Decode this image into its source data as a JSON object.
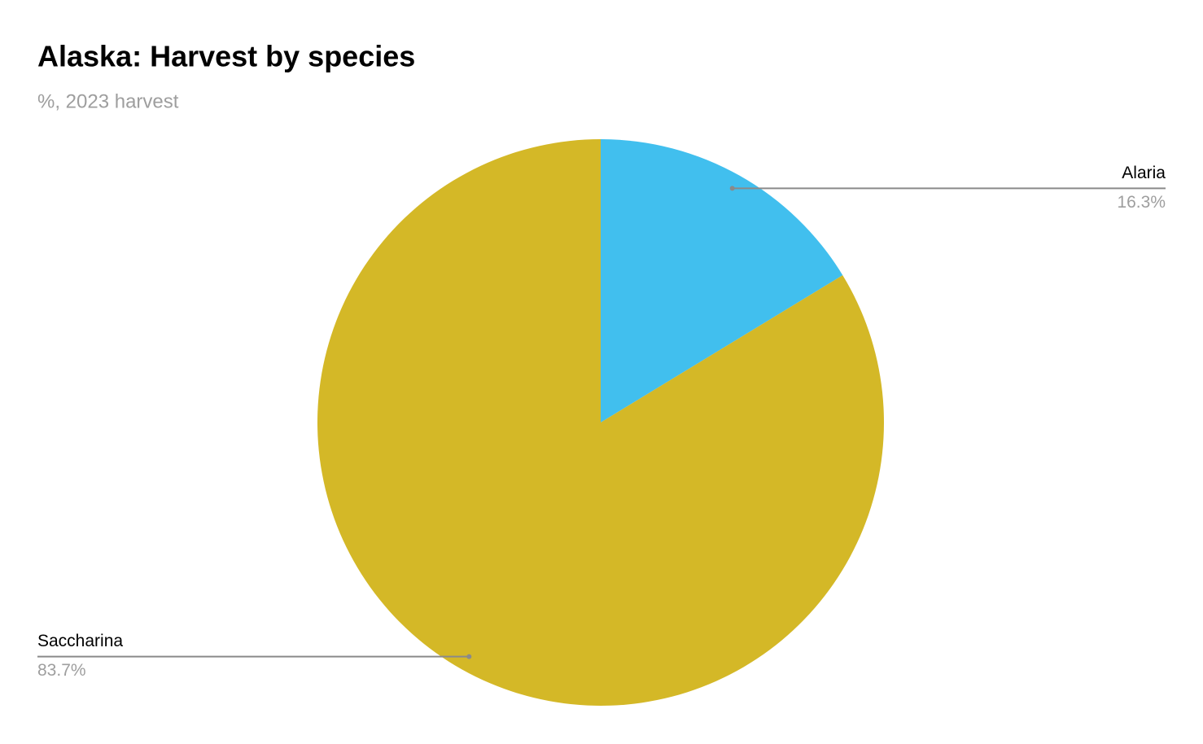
{
  "chart_data": {
    "type": "pie",
    "title": "Alaska: Harvest by species",
    "subtitle": "%, 2023 harvest",
    "categories": [
      "Alaria",
      "Saccharina"
    ],
    "values": [
      16.3,
      83.7
    ],
    "value_labels": [
      "16.3%",
      "83.7%"
    ],
    "colors": [
      "#41bfee",
      "#d4b827"
    ]
  }
}
